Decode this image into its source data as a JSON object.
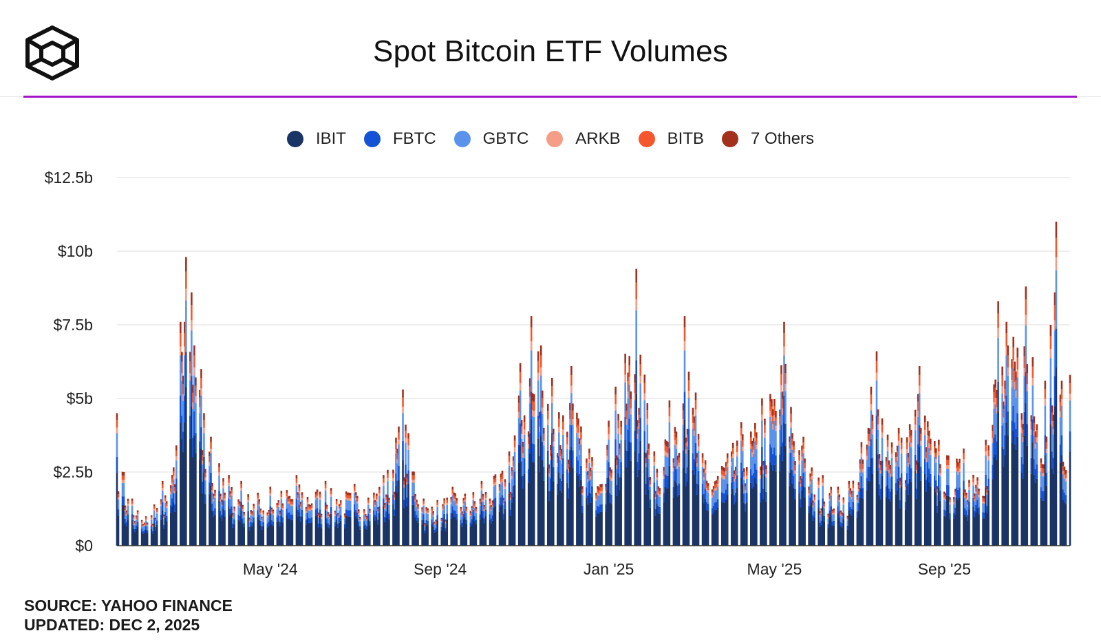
{
  "header": {
    "title": "Spot Bitcoin ETF Volumes"
  },
  "colors": {
    "accent_rule": "#a313c8",
    "grid": "#e8e8e8",
    "axis": "#333333"
  },
  "chart_data": {
    "type": "bar",
    "stacked": true,
    "title": "Spot Bitcoin ETF Volumes",
    "xlabel": "",
    "ylabel": "",
    "y_unit": "USD billions",
    "ylim": [
      0,
      12.5
    ],
    "y_ticks": [
      0,
      2.5,
      5,
      7.5,
      10,
      12.5
    ],
    "y_tick_labels": [
      "$0",
      "$2.5b",
      "$5b",
      "$7.5b",
      "$10b",
      "$12.5b"
    ],
    "x_range": [
      "2024-01-11",
      "2025-12-01"
    ],
    "x_ticks": [
      {
        "date": "2024-05-01",
        "label": "May '24"
      },
      {
        "date": "2024-09-01",
        "label": "Sep '24"
      },
      {
        "date": "2025-01-01",
        "label": "Jan '25"
      },
      {
        "date": "2025-05-01",
        "label": "May '25"
      },
      {
        "date": "2025-09-01",
        "label": "Sep '25"
      }
    ],
    "grid": true,
    "legend_position": "top-center",
    "series": [
      {
        "name": "IBIT",
        "color": "#1b3466"
      },
      {
        "name": "FBTC",
        "color": "#1452d6"
      },
      {
        "name": "GBTC",
        "color": "#5b93ec"
      },
      {
        "name": "ARKB",
        "color": "#f59d86"
      },
      {
        "name": "BITB",
        "color": "#f4572c"
      },
      {
        "name": "7 Others",
        "color": "#a3301c"
      }
    ],
    "x": [
      "2024-01-11",
      "2024-01-16",
      "2024-01-22",
      "2024-01-26",
      "2024-02-01",
      "2024-02-07",
      "2024-02-13",
      "2024-02-20",
      "2024-02-26",
      "2024-02-29",
      "2024-03-01",
      "2024-03-05",
      "2024-03-07",
      "2024-03-12",
      "2024-03-14",
      "2024-03-19",
      "2024-03-25",
      "2024-04-01",
      "2024-04-10",
      "2024-04-22",
      "2024-05-01",
      "2024-05-20",
      "2024-06-10",
      "2024-07-01",
      "2024-07-22",
      "2024-08-05",
      "2024-08-20",
      "2024-09-10",
      "2024-10-01",
      "2024-10-21",
      "2024-10-29",
      "2024-11-06",
      "2024-11-11",
      "2024-11-13",
      "2024-11-21",
      "2024-12-05",
      "2024-12-18",
      "2025-01-06",
      "2025-01-21",
      "2025-02-03",
      "2025-02-25",
      "2025-03-05",
      "2025-03-12",
      "2025-04-07",
      "2025-04-22",
      "2025-05-08",
      "2025-05-22",
      "2025-06-05",
      "2025-06-24",
      "2025-07-10",
      "2025-07-14",
      "2025-07-30",
      "2025-08-14",
      "2025-08-28",
      "2025-09-15",
      "2025-10-01",
      "2025-10-10",
      "2025-10-16",
      "2025-10-30",
      "2025-11-04",
      "2025-11-13",
      "2025-11-17",
      "2025-11-20",
      "2025-11-21",
      "2025-11-25",
      "2025-12-01"
    ],
    "totals": [
      4.5,
      2.5,
      1.6,
      1.2,
      1.0,
      1.4,
      2.2,
      2.4,
      7.6,
      7.6,
      9.8,
      8.6,
      6.8,
      6.0,
      4.5,
      3.7,
      2.8,
      2.4,
      2.2,
      1.8,
      2.0,
      2.4,
      2.2,
      2.1,
      2.4,
      5.3,
      1.6,
      2.0,
      2.2,
      3.2,
      6.2,
      7.8,
      6.6,
      6.8,
      5.7,
      6.1,
      3.3,
      5.4,
      9.4,
      3.2,
      7.8,
      5.2,
      2.9,
      4.2,
      5.0,
      7.6,
      3.7,
      2.4,
      2.2,
      5.4,
      6.6,
      4.0,
      6.1,
      3.6,
      3.3,
      3.6,
      8.3,
      7.6,
      8.8,
      6.4,
      5.6,
      7.5,
      8.6,
      11.0,
      5.6,
      5.8
    ],
    "breakdown_percent": {
      "IBIT": 55,
      "FBTC": 12,
      "GBTC": 18,
      "ARKB": 4,
      "BITB": 6,
      "7 Others": 5
    }
  },
  "footer": {
    "source": "SOURCE: YAHOO FINANCE",
    "updated": "UPDATED: DEC 2, 2025"
  }
}
